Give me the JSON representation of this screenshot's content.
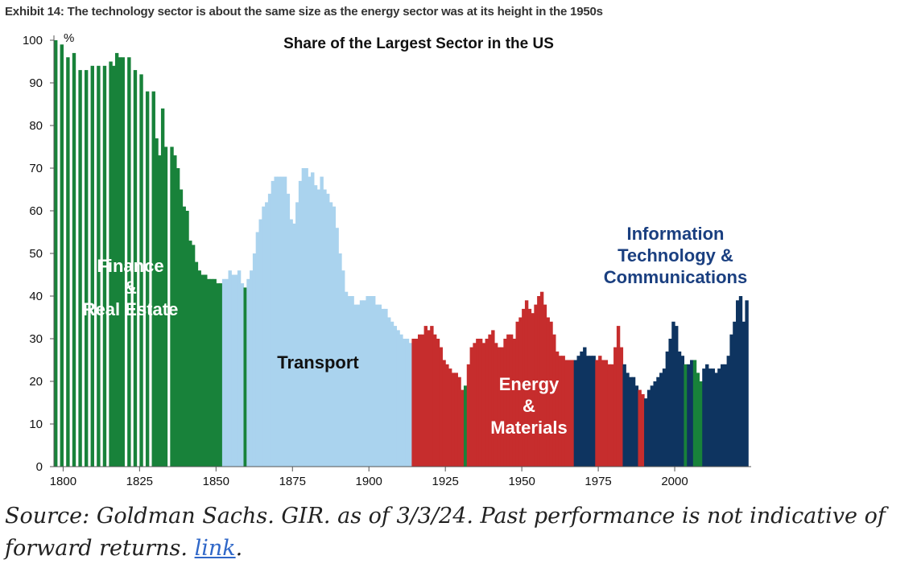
{
  "header": {
    "exhibit_title": "Exhibit 14: The technology sector is about the same size as the energy sector was at its height in the 1950s"
  },
  "footer": {
    "source_text": "Source: Goldman Sachs. GIR. as of 3/3/24. Past performance is not indicative of forward returns. ",
    "link_label": "link",
    "trailing": "."
  },
  "colors": {
    "finance": "#18823a",
    "transport": "#aad3ee",
    "energy": "#c62d2d",
    "tech": "#0e3460",
    "text_dark": "#111111",
    "label_on_dark": "#ffffff",
    "tech_label": "#1a3f80"
  },
  "chart_data": {
    "type": "bar",
    "title": "Share of the Largest Sector in the US",
    "xlabel": "",
    "ylabel": "%",
    "xlim": [
      1797,
      2025
    ],
    "ylim": [
      0,
      100
    ],
    "x_ticks": [
      1800,
      1825,
      1850,
      1875,
      1900,
      1925,
      1950,
      1975,
      2000
    ],
    "y_ticks": [
      0,
      10,
      20,
      30,
      40,
      50,
      60,
      70,
      80,
      90,
      100
    ],
    "grid": false,
    "legend": "none",
    "annotations": [
      {
        "text": "Finance",
        "sector": "finance"
      },
      {
        "text": "&",
        "sector": "finance"
      },
      {
        "text": "Real Estate",
        "sector": "finance"
      },
      {
        "text": "Transport",
        "sector": "transport"
      },
      {
        "text": "Energy",
        "sector": "energy"
      },
      {
        "text": "&",
        "sector": "energy"
      },
      {
        "text": "Materials",
        "sector": "energy"
      },
      {
        "text": "Information",
        "sector": "tech"
      },
      {
        "text": "Technology &",
        "sector": "tech"
      },
      {
        "text": "Communications",
        "sector": "tech"
      }
    ],
    "series": [
      {
        "sector": "finance",
        "points": [
          [
            1797,
            100
          ],
          [
            1799,
            99
          ],
          [
            1801,
            96
          ],
          [
            1803,
            97
          ],
          [
            1805,
            93
          ],
          [
            1807,
            93
          ],
          [
            1809,
            94
          ],
          [
            1811,
            94
          ],
          [
            1813,
            94
          ],
          [
            1815,
            95
          ],
          [
            1816,
            94
          ],
          [
            1817,
            97
          ],
          [
            1818,
            96
          ],
          [
            1819,
            96
          ],
          [
            1821,
            96
          ],
          [
            1823,
            93
          ],
          [
            1825,
            92
          ],
          [
            1827,
            88
          ],
          [
            1829,
            88
          ],
          [
            1830,
            77
          ],
          [
            1831,
            73
          ],
          [
            1832,
            84
          ],
          [
            1833,
            75
          ],
          [
            1835,
            75
          ],
          [
            1836,
            73
          ],
          [
            1837,
            70
          ],
          [
            1838,
            65
          ],
          [
            1839,
            61
          ],
          [
            1840,
            60
          ],
          [
            1841,
            53
          ],
          [
            1842,
            52
          ],
          [
            1843,
            48
          ],
          [
            1844,
            46
          ],
          [
            1845,
            45
          ],
          [
            1846,
            45
          ],
          [
            1847,
            44
          ],
          [
            1848,
            44
          ],
          [
            1849,
            44
          ],
          [
            1850,
            43
          ],
          [
            1851,
            43
          ]
        ]
      },
      {
        "sector": "transport",
        "points": [
          [
            1852,
            44
          ],
          [
            1853,
            44
          ],
          [
            1854,
            46
          ],
          [
            1855,
            45
          ],
          [
            1856,
            45
          ],
          [
            1857,
            46
          ],
          [
            1858,
            43
          ]
        ]
      },
      {
        "sector": "finance",
        "points": [
          [
            1859,
            42
          ]
        ]
      },
      {
        "sector": "transport",
        "points": [
          [
            1860,
            44
          ],
          [
            1861,
            46
          ],
          [
            1862,
            50
          ],
          [
            1863,
            55
          ],
          [
            1864,
            58
          ],
          [
            1865,
            61
          ],
          [
            1866,
            62
          ],
          [
            1867,
            64
          ],
          [
            1868,
            67
          ],
          [
            1869,
            68
          ],
          [
            1870,
            68
          ],
          [
            1871,
            68
          ],
          [
            1872,
            68
          ],
          [
            1873,
            64
          ],
          [
            1874,
            58
          ],
          [
            1875,
            57
          ],
          [
            1876,
            62
          ],
          [
            1877,
            67
          ],
          [
            1878,
            70
          ],
          [
            1879,
            70
          ],
          [
            1880,
            68
          ],
          [
            1881,
            69
          ],
          [
            1882,
            66
          ],
          [
            1883,
            65
          ],
          [
            1884,
            68
          ],
          [
            1885,
            65
          ],
          [
            1886,
            64
          ],
          [
            1887,
            62
          ],
          [
            1888,
            61
          ],
          [
            1889,
            56
          ],
          [
            1890,
            50
          ],
          [
            1891,
            46
          ],
          [
            1892,
            41
          ],
          [
            1893,
            40
          ],
          [
            1894,
            40
          ],
          [
            1895,
            38
          ],
          [
            1896,
            38
          ],
          [
            1897,
            39
          ],
          [
            1898,
            39
          ],
          [
            1899,
            40
          ],
          [
            1900,
            40
          ],
          [
            1901,
            40
          ],
          [
            1902,
            38
          ],
          [
            1903,
            38
          ],
          [
            1904,
            37
          ],
          [
            1905,
            37
          ],
          [
            1906,
            35
          ],
          [
            1907,
            34
          ],
          [
            1908,
            33
          ],
          [
            1909,
            32
          ],
          [
            1910,
            31
          ],
          [
            1911,
            30
          ],
          [
            1912,
            30
          ],
          [
            1913,
            29
          ]
        ]
      },
      {
        "sector": "energy",
        "points": [
          [
            1914,
            30
          ],
          [
            1915,
            30
          ],
          [
            1916,
            31
          ],
          [
            1917,
            31
          ],
          [
            1918,
            33
          ],
          [
            1919,
            32
          ],
          [
            1920,
            33
          ],
          [
            1921,
            31
          ],
          [
            1922,
            30
          ],
          [
            1923,
            28
          ],
          [
            1924,
            25
          ],
          [
            1925,
            24
          ],
          [
            1926,
            23
          ],
          [
            1927,
            22
          ],
          [
            1928,
            22
          ],
          [
            1929,
            21
          ],
          [
            1930,
            18
          ]
        ]
      },
      {
        "sector": "finance",
        "points": [
          [
            1931,
            19
          ]
        ]
      },
      {
        "sector": "energy",
        "points": [
          [
            1932,
            24
          ],
          [
            1933,
            28
          ],
          [
            1934,
            29
          ],
          [
            1935,
            30
          ],
          [
            1936,
            30
          ],
          [
            1937,
            29
          ],
          [
            1938,
            30
          ],
          [
            1939,
            31
          ],
          [
            1940,
            32
          ],
          [
            1941,
            29
          ],
          [
            1942,
            28
          ],
          [
            1943,
            28
          ],
          [
            1944,
            30
          ],
          [
            1945,
            31
          ],
          [
            1946,
            31
          ],
          [
            1947,
            30
          ],
          [
            1948,
            34
          ],
          [
            1949,
            35
          ],
          [
            1950,
            37
          ],
          [
            1951,
            39
          ],
          [
            1952,
            37
          ],
          [
            1953,
            36
          ],
          [
            1954,
            38
          ],
          [
            1955,
            40
          ],
          [
            1956,
            41
          ],
          [
            1957,
            38
          ],
          [
            1958,
            35
          ],
          [
            1959,
            34
          ],
          [
            1960,
            31
          ],
          [
            1961,
            27
          ],
          [
            1962,
            26
          ],
          [
            1963,
            26
          ],
          [
            1964,
            25
          ],
          [
            1965,
            25
          ],
          [
            1966,
            25
          ]
        ]
      },
      {
        "sector": "tech",
        "points": [
          [
            1967,
            25
          ],
          [
            1968,
            26
          ],
          [
            1969,
            27
          ],
          [
            1970,
            28
          ],
          [
            1971,
            26
          ],
          [
            1972,
            26
          ],
          [
            1973,
            26
          ]
        ]
      },
      {
        "sector": "energy",
        "points": [
          [
            1974,
            25
          ],
          [
            1975,
            26
          ],
          [
            1976,
            25
          ],
          [
            1977,
            25
          ],
          [
            1978,
            24
          ],
          [
            1979,
            24
          ],
          [
            1980,
            28
          ],
          [
            1981,
            33
          ],
          [
            1982,
            28
          ]
        ]
      },
      {
        "sector": "tech",
        "points": [
          [
            1983,
            24
          ],
          [
            1984,
            22
          ],
          [
            1985,
            21
          ],
          [
            1986,
            21
          ],
          [
            1987,
            19
          ]
        ]
      },
      {
        "sector": "energy",
        "points": [
          [
            1988,
            18
          ],
          [
            1989,
            17
          ]
        ]
      },
      {
        "sector": "tech",
        "points": [
          [
            1990,
            16
          ],
          [
            1991,
            18
          ],
          [
            1992,
            19
          ],
          [
            1993,
            20
          ],
          [
            1994,
            21
          ],
          [
            1995,
            22
          ],
          [
            1996,
            23
          ],
          [
            1997,
            27
          ],
          [
            1998,
            30
          ],
          [
            1999,
            34
          ],
          [
            2000,
            33
          ],
          [
            2001,
            27
          ],
          [
            2002,
            26
          ]
        ]
      },
      {
        "sector": "finance",
        "points": [
          [
            2003,
            24
          ]
        ]
      },
      {
        "sector": "tech",
        "points": [
          [
            2004,
            24
          ],
          [
            2005,
            25
          ]
        ]
      },
      {
        "sector": "finance",
        "points": [
          [
            2006,
            25
          ],
          [
            2007,
            22
          ],
          [
            2008,
            20
          ]
        ]
      },
      {
        "sector": "tech",
        "points": [
          [
            2009,
            23
          ],
          [
            2010,
            24
          ],
          [
            2011,
            23
          ],
          [
            2012,
            23
          ],
          [
            2013,
            22
          ],
          [
            2014,
            23
          ],
          [
            2015,
            24
          ],
          [
            2016,
            24
          ],
          [
            2017,
            26
          ],
          [
            2018,
            31
          ],
          [
            2019,
            34
          ],
          [
            2020,
            39
          ],
          [
            2021,
            40
          ],
          [
            2022,
            34
          ],
          [
            2023,
            39
          ]
        ]
      }
    ]
  }
}
